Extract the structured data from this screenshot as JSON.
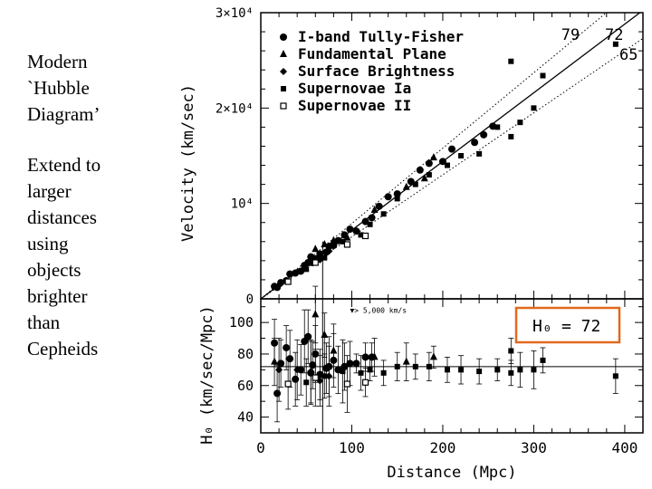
{
  "slide": {
    "title_lines": [
      "Modern",
      "`Hubble",
      "Diagram’"
    ],
    "body_lines": [
      "Extend to",
      "larger",
      "distances",
      "using",
      "objects",
      "brighter",
      "than",
      "Cepheids"
    ]
  },
  "chart_data": [
    {
      "type": "scatter",
      "panel": "top",
      "ylabel": "Velocity (km/sec)",
      "ytick_labels": [
        "0",
        "10⁴",
        "2×10⁴",
        "3×10⁴"
      ],
      "yticks": [
        0,
        10000,
        20000,
        30000
      ],
      "xlim": [
        0,
        420
      ],
      "ylim": [
        0,
        30000
      ],
      "legend": [
        {
          "marker": "circle",
          "label": "I-band Tully-Fisher"
        },
        {
          "marker": "triangle",
          "label": "Fundamental Plane"
        },
        {
          "marker": "diamond",
          "label": "Surface Brightness"
        },
        {
          "marker": "square",
          "label": "Supernovae Ia"
        },
        {
          "marker": "open-square",
          "label": "Supernovae II"
        }
      ],
      "fit_lines": [
        {
          "label": "72",
          "H0": 72,
          "style": "solid"
        },
        {
          "label": "79",
          "H0": 79,
          "style": "dotted"
        },
        {
          "label": "65",
          "H0": 65,
          "style": "dotted"
        }
      ],
      "vertical_marker_x": 68,
      "series": [
        {
          "name": "I-band Tully-Fisher",
          "marker": "circle",
          "points": [
            [
              15,
              1300
            ],
            [
              18,
              1200
            ],
            [
              22,
              1700
            ],
            [
              28,
              1900
            ],
            [
              32,
              2600
            ],
            [
              38,
              2700
            ],
            [
              44,
              2900
            ],
            [
              48,
              3500
            ],
            [
              52,
              3800
            ],
            [
              55,
              4400
            ],
            [
              57,
              3800
            ],
            [
              60,
              4200
            ],
            [
              65,
              4700
            ],
            [
              72,
              4900
            ],
            [
              75,
              5500
            ],
            [
              80,
              5600
            ],
            [
              85,
              6100
            ],
            [
              92,
              6700
            ],
            [
              98,
              7300
            ],
            [
              105,
              7100
            ],
            [
              115,
              8100
            ],
            [
              122,
              8500
            ],
            [
              130,
              9700
            ],
            [
              140,
              10700
            ],
            [
              150,
              11000
            ],
            [
              165,
              12300
            ],
            [
              175,
              13500
            ],
            [
              185,
              14200
            ],
            [
              200,
              14400
            ],
            [
              210,
              15700
            ],
            [
              235,
              16400
            ],
            [
              245,
              17200
            ],
            [
              255,
              18100
            ]
          ]
        },
        {
          "name": "Fundamental Plane",
          "marker": "triangle",
          "points": [
            [
              60,
              5200
            ],
            [
              70,
              5700
            ],
            [
              80,
              6100
            ],
            [
              95,
              6400
            ],
            [
              125,
              9300
            ],
            [
              160,
              11700
            ],
            [
              180,
              12600
            ],
            [
              190,
              14800
            ]
          ]
        },
        {
          "name": "Surface Brightness",
          "marker": "diamond",
          "points": [
            [
              20,
              1400
            ],
            [
              40,
              2800
            ],
            [
              55,
              3800
            ],
            [
              65,
              4100
            ],
            [
              75,
              5000
            ]
          ]
        },
        {
          "name": "Supernovae Ia",
          "marker": "square",
          "points": [
            [
              50,
              3100
            ],
            [
              70,
              4300
            ],
            [
              90,
              6000
            ],
            [
              110,
              6700
            ],
            [
              120,
              7800
            ],
            [
              135,
              8900
            ],
            [
              150,
              10500
            ],
            [
              170,
              12000
            ],
            [
              185,
              13000
            ],
            [
              205,
              14000
            ],
            [
              220,
              15000
            ],
            [
              240,
              15200
            ],
            [
              260,
              18000
            ],
            [
              275,
              17000
            ],
            [
              285,
              18500
            ],
            [
              300,
              20000
            ],
            [
              310,
              23400
            ],
            [
              390,
              26700
            ],
            [
              275,
              24900
            ]
          ]
        },
        {
          "name": "Supernovae II",
          "marker": "open-square",
          "points": [
            [
              30,
              1800
            ],
            [
              60,
              3800
            ],
            [
              95,
              5700
            ],
            [
              115,
              6600
            ]
          ]
        }
      ]
    },
    {
      "type": "scatter",
      "panel": "bottom",
      "xlabel": "Distance (Mpc)",
      "ylabel": "H₀ (km/sec/Mpc)",
      "xticks": [
        0,
        100,
        200,
        300,
        400
      ],
      "yticks": [
        40,
        60,
        80,
        100
      ],
      "xlim": [
        0,
        420
      ],
      "ylim": [
        30,
        115
      ],
      "reference_line": 72,
      "vertical_marker_x": 68,
      "annotation": "▼> 5,000 km/s",
      "boxed_label": {
        "symbol": "H₀",
        "text": "= 72"
      },
      "series": [
        {
          "name": "I-band Tully-Fisher",
          "marker": "circle",
          "points": [
            [
              15,
              87
            ],
            [
              18,
              55
            ],
            [
              22,
              74
            ],
            [
              28,
              84
            ],
            [
              32,
              77
            ],
            [
              38,
              64
            ],
            [
              44,
              70
            ],
            [
              48,
              88
            ],
            [
              52,
              91
            ],
            [
              55,
              68
            ],
            [
              57,
              73
            ],
            [
              60,
              80
            ],
            [
              65,
              67
            ],
            [
              72,
              71
            ],
            [
              75,
              72
            ],
            [
              80,
              76
            ],
            [
              85,
              70
            ],
            [
              92,
              72
            ],
            [
              98,
              74
            ],
            [
              105,
              74
            ],
            [
              115,
              78
            ],
            [
              122,
              78
            ]
          ]
        },
        {
          "name": "Fundamental Plane",
          "marker": "triangle",
          "points": [
            [
              15,
              75
            ],
            [
              60,
              105
            ],
            [
              70,
              92
            ],
            [
              80,
              82
            ],
            [
              125,
              78
            ],
            [
              160,
              75
            ],
            [
              190,
              78
            ]
          ]
        },
        {
          "name": "Surface Brightness",
          "marker": "diamond",
          "points": [
            [
              20,
              70
            ],
            [
              40,
              70
            ],
            [
              55,
              69
            ],
            [
              65,
              63
            ],
            [
              75,
              66
            ]
          ]
        },
        {
          "name": "Supernovae Ia",
          "marker": "square",
          "points": [
            [
              50,
              62
            ],
            [
              70,
              66
            ],
            [
              90,
              69
            ],
            [
              110,
              68
            ],
            [
              120,
              70
            ],
            [
              135,
              68
            ],
            [
              150,
              72
            ],
            [
              170,
              72
            ],
            [
              185,
              72
            ],
            [
              205,
              70
            ],
            [
              220,
              70
            ],
            [
              240,
              69
            ],
            [
              260,
              70
            ],
            [
              275,
              68
            ],
            [
              285,
              70
            ],
            [
              300,
              70
            ],
            [
              310,
              76
            ],
            [
              390,
              66
            ],
            [
              275,
              82
            ]
          ]
        },
        {
          "name": "Supernovae II",
          "marker": "open-square",
          "points": [
            [
              30,
              61
            ],
            [
              60,
              65
            ],
            [
              95,
              61
            ],
            [
              115,
              62
            ]
          ]
        }
      ]
    }
  ]
}
